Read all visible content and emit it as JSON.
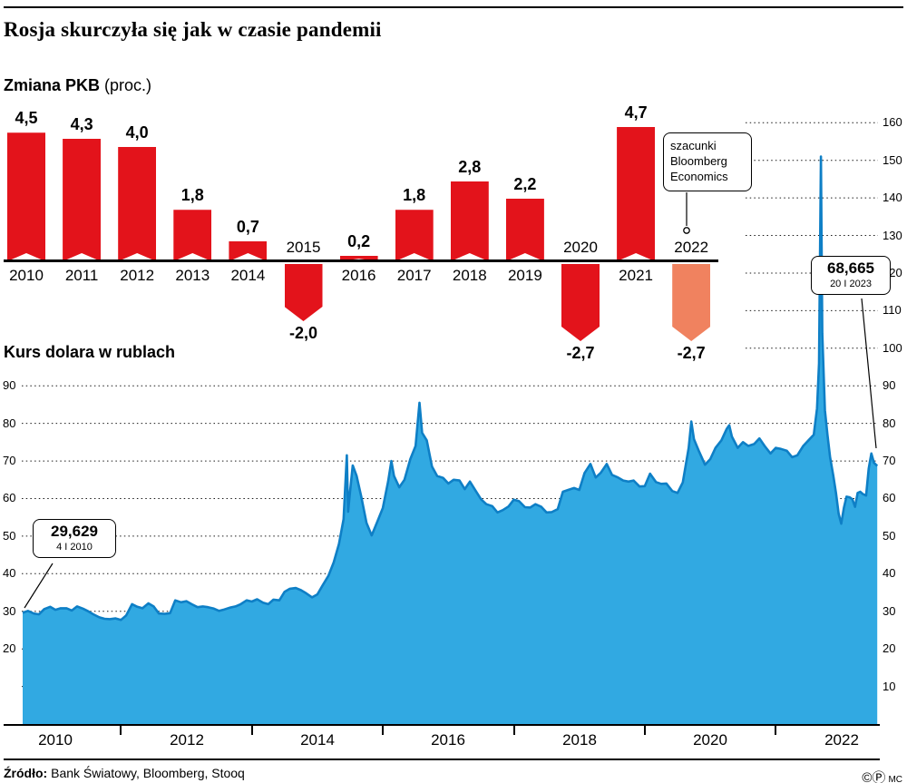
{
  "header": {
    "title": "Rosja skurczyła się jak w czasie pandemii"
  },
  "gdp_chart": {
    "heading_bold": "Zmiana PKB",
    "heading_normal": " (proc.)"
  },
  "usd_chart": {
    "heading": "Kurs dolara w rublach"
  },
  "annotations": {
    "estimate_note": {
      "lines": [
        "szacunki",
        "Bloomberg",
        "Economics"
      ]
    },
    "start_note": {
      "value": "29,629",
      "date": "4 I 2010"
    },
    "end_note": {
      "value": "68,665",
      "date": "20 I 2023"
    }
  },
  "source": {
    "label": "Źródło:",
    "text": " Bank Światowy, Bloomberg, Stooq"
  },
  "footer_marks": {
    "copyright": "©",
    "p_mark": "Ⓟ",
    "initials": "MC"
  },
  "colors": {
    "bar": "#e3131b",
    "bar_estimate": "#f0825f",
    "area_fill": "#31a9e2",
    "area_stroke": "#0e7fc6",
    "grid": "#1a1a1a",
    "text": "#000000"
  },
  "chart_data": [
    {
      "type": "bar",
      "title": "Zmiana PKB (proc.)",
      "categories": [
        "2010",
        "2011",
        "2012",
        "2013",
        "2014",
        "2015",
        "2016",
        "2017",
        "2018",
        "2019",
        "2020",
        "2021",
        "2022"
      ],
      "values": [
        4.5,
        4.3,
        4.0,
        1.8,
        0.7,
        -2.0,
        0.2,
        1.8,
        2.8,
        2.2,
        -2.7,
        4.7,
        -2.7
      ],
      "labels": [
        "4,5",
        "4,3",
        "4,0",
        "1,8",
        "0,7",
        "-2,0",
        "0,2",
        "1,8",
        "2,8",
        "2,2",
        "-2,7",
        "4,7",
        "-2,7"
      ],
      "estimate_years": [
        "2022"
      ],
      "ylim": [
        -3,
        5
      ]
    },
    {
      "type": "area",
      "title": "Kurs dolara w rublach",
      "x_ticks": [
        "2010",
        "2012",
        "2014",
        "2016",
        "2018",
        "2020",
        "2022"
      ],
      "left_axis_ticks": [
        90,
        80,
        70,
        60,
        50,
        40,
        30,
        20
      ],
      "right_axis_ticks": [
        160,
        150,
        140,
        130,
        120,
        110,
        100,
        90,
        80,
        70,
        60,
        50,
        40,
        30,
        20,
        10
      ],
      "start_point": {
        "date": "4 I 2010",
        "value": 29.629
      },
      "end_point": {
        "date": "20 I 2023",
        "value": 68.665
      },
      "series": [
        {
          "name": "USD/RUB",
          "points": [
            [
              2010.0,
              29.6
            ],
            [
              2010.08,
              30.1
            ],
            [
              2010.17,
              29.4
            ],
            [
              2010.25,
              29.2
            ],
            [
              2010.33,
              30.6
            ],
            [
              2010.42,
              31.2
            ],
            [
              2010.5,
              30.4
            ],
            [
              2010.58,
              30.8
            ],
            [
              2010.67,
              30.8
            ],
            [
              2010.75,
              30.2
            ],
            [
              2010.83,
              31.3
            ],
            [
              2010.92,
              30.7
            ],
            [
              2011.0,
              30.0
            ],
            [
              2011.08,
              29.2
            ],
            [
              2011.17,
              28.4
            ],
            [
              2011.25,
              28.0
            ],
            [
              2011.33,
              27.9
            ],
            [
              2011.42,
              28.1
            ],
            [
              2011.5,
              27.7
            ],
            [
              2011.58,
              28.9
            ],
            [
              2011.67,
              31.9
            ],
            [
              2011.75,
              31.2
            ],
            [
              2011.83,
              30.8
            ],
            [
              2011.92,
              32.1
            ],
            [
              2012.0,
              31.3
            ],
            [
              2012.08,
              29.4
            ],
            [
              2012.17,
              29.3
            ],
            [
              2012.25,
              29.5
            ],
            [
              2012.33,
              32.9
            ],
            [
              2012.42,
              32.4
            ],
            [
              2012.5,
              32.7
            ],
            [
              2012.58,
              31.9
            ],
            [
              2012.67,
              31.1
            ],
            [
              2012.75,
              31.3
            ],
            [
              2012.83,
              31.1
            ],
            [
              2012.92,
              30.7
            ],
            [
              2013.0,
              30.1
            ],
            [
              2013.08,
              30.5
            ],
            [
              2013.17,
              31.0
            ],
            [
              2013.25,
              31.3
            ],
            [
              2013.33,
              31.9
            ],
            [
              2013.42,
              32.9
            ],
            [
              2013.5,
              32.6
            ],
            [
              2013.58,
              33.2
            ],
            [
              2013.67,
              32.3
            ],
            [
              2013.75,
              31.9
            ],
            [
              2013.83,
              33.1
            ],
            [
              2013.92,
              32.9
            ],
            [
              2014.0,
              35.2
            ],
            [
              2014.08,
              36.0
            ],
            [
              2014.17,
              36.2
            ],
            [
              2014.25,
              35.6
            ],
            [
              2014.33,
              34.8
            ],
            [
              2014.42,
              33.7
            ],
            [
              2014.5,
              34.5
            ],
            [
              2014.58,
              36.9
            ],
            [
              2014.67,
              39.5
            ],
            [
              2014.75,
              43.0
            ],
            [
              2014.83,
              47.9
            ],
            [
              2014.9,
              54.5
            ],
            [
              2014.95,
              71.5
            ],
            [
              2014.97,
              56.5
            ],
            [
              2015.0,
              62.0
            ],
            [
              2015.04,
              68.8
            ],
            [
              2015.1,
              66.0
            ],
            [
              2015.17,
              60.5
            ],
            [
              2015.25,
              53.5
            ],
            [
              2015.33,
              50.2
            ],
            [
              2015.42,
              54.0
            ],
            [
              2015.5,
              57.5
            ],
            [
              2015.58,
              64.5
            ],
            [
              2015.63,
              70.0
            ],
            [
              2015.67,
              66.0
            ],
            [
              2015.75,
              63.0
            ],
            [
              2015.83,
              65.0
            ],
            [
              2015.92,
              70.5
            ],
            [
              2016.0,
              74.0
            ],
            [
              2016.06,
              85.5
            ],
            [
              2016.1,
              77.5
            ],
            [
              2016.17,
              75.5
            ],
            [
              2016.25,
              68.5
            ],
            [
              2016.33,
              66.0
            ],
            [
              2016.42,
              65.5
            ],
            [
              2016.5,
              64.0
            ],
            [
              2016.58,
              65.0
            ],
            [
              2016.67,
              64.8
            ],
            [
              2016.75,
              62.5
            ],
            [
              2016.83,
              64.5
            ],
            [
              2016.92,
              62.0
            ],
            [
              2017.0,
              59.8
            ],
            [
              2017.08,
              58.5
            ],
            [
              2017.17,
              58.0
            ],
            [
              2017.25,
              56.3
            ],
            [
              2017.33,
              56.9
            ],
            [
              2017.42,
              57.9
            ],
            [
              2017.5,
              59.7
            ],
            [
              2017.58,
              59.3
            ],
            [
              2017.67,
              57.7
            ],
            [
              2017.75,
              57.6
            ],
            [
              2017.83,
              58.5
            ],
            [
              2017.92,
              57.8
            ],
            [
              2018.0,
              56.3
            ],
            [
              2018.08,
              56.4
            ],
            [
              2018.17,
              57.2
            ],
            [
              2018.25,
              61.8
            ],
            [
              2018.33,
              62.3
            ],
            [
              2018.42,
              62.8
            ],
            [
              2018.5,
              62.3
            ],
            [
              2018.58,
              66.8
            ],
            [
              2018.67,
              69.2
            ],
            [
              2018.75,
              65.6
            ],
            [
              2018.83,
              66.9
            ],
            [
              2018.92,
              69.2
            ],
            [
              2019.0,
              66.3
            ],
            [
              2019.08,
              65.7
            ],
            [
              2019.17,
              64.8
            ],
            [
              2019.25,
              64.5
            ],
            [
              2019.33,
              64.8
            ],
            [
              2019.42,
              63.2
            ],
            [
              2019.5,
              63.3
            ],
            [
              2019.58,
              66.6
            ],
            [
              2019.67,
              64.4
            ],
            [
              2019.75,
              63.9
            ],
            [
              2019.83,
              64.0
            ],
            [
              2019.92,
              62.0
            ],
            [
              2020.0,
              61.5
            ],
            [
              2020.08,
              64.3
            ],
            [
              2020.17,
              73.5
            ],
            [
              2020.21,
              80.5
            ],
            [
              2020.25,
              75.8
            ],
            [
              2020.33,
              72.5
            ],
            [
              2020.42,
              69.0
            ],
            [
              2020.5,
              70.5
            ],
            [
              2020.58,
              73.5
            ],
            [
              2020.67,
              75.5
            ],
            [
              2020.75,
              78.5
            ],
            [
              2020.79,
              79.5
            ],
            [
              2020.83,
              76.5
            ],
            [
              2020.92,
              73.5
            ],
            [
              2021.0,
              75.0
            ],
            [
              2021.08,
              74.0
            ],
            [
              2021.17,
              74.5
            ],
            [
              2021.25,
              76.0
            ],
            [
              2021.33,
              74.0
            ],
            [
              2021.42,
              72.0
            ],
            [
              2021.5,
              73.5
            ],
            [
              2021.58,
              73.2
            ],
            [
              2021.67,
              72.7
            ],
            [
              2021.75,
              71.0
            ],
            [
              2021.83,
              71.5
            ],
            [
              2021.92,
              74.0
            ],
            [
              2022.0,
              75.5
            ],
            [
              2022.08,
              77.0
            ],
            [
              2022.13,
              84.0
            ],
            [
              2022.16,
              96.0
            ],
            [
              2022.19,
              151.0
            ],
            [
              2022.21,
              104.0
            ],
            [
              2022.25,
              83.5
            ],
            [
              2022.29,
              77.0
            ],
            [
              2022.33,
              71.0
            ],
            [
              2022.38,
              66.0
            ],
            [
              2022.42,
              61.5
            ],
            [
              2022.46,
              56.0
            ],
            [
              2022.5,
              53.3
            ],
            [
              2022.54,
              57.5
            ],
            [
              2022.58,
              60.5
            ],
            [
              2022.63,
              60.3
            ],
            [
              2022.67,
              59.8
            ],
            [
              2022.71,
              57.8
            ],
            [
              2022.75,
              61.5
            ],
            [
              2022.79,
              61.8
            ],
            [
              2022.83,
              61.2
            ],
            [
              2022.88,
              60.8
            ],
            [
              2022.92,
              68.0
            ],
            [
              2022.96,
              72.0
            ],
            [
              2023.0,
              69.5
            ],
            [
              2023.05,
              68.665
            ]
          ]
        }
      ]
    }
  ]
}
